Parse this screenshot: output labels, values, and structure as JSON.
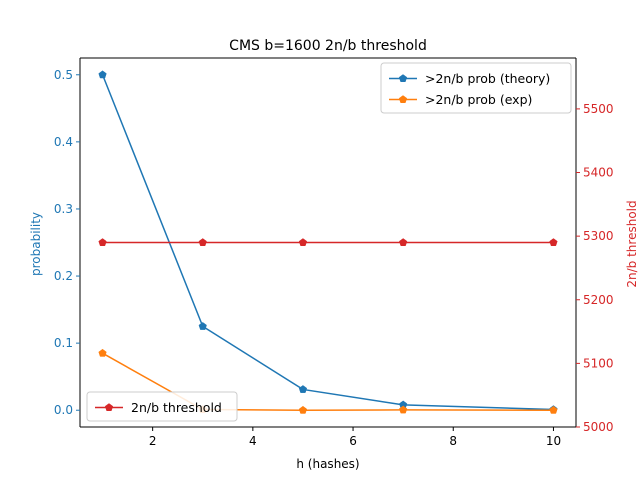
{
  "chart_data": {
    "type": "line",
    "title": "CMS b=1600 2n/b threshold",
    "xlabel": "h (hashes)",
    "ylabel_left": "probability",
    "ylabel_right": "2n/b threshold",
    "x": [
      1,
      3,
      5,
      7,
      10
    ],
    "xlim": [
      0.55,
      10.45
    ],
    "xticks": [
      2,
      4,
      6,
      8,
      10
    ],
    "ylim_left": [
      -0.025,
      0.525
    ],
    "yticks_left": [
      0.0,
      0.1,
      0.2,
      0.3,
      0.4,
      0.5
    ],
    "ylim_right": [
      5000,
      5580
    ],
    "yticks_right": [
      5000,
      5100,
      5200,
      5300,
      5400,
      5500
    ],
    "grid": false,
    "series": [
      {
        "name": ">2n/b prob (theory)",
        "axis": "left",
        "color": "#1f77b4",
        "marker": "pentagon",
        "values": [
          0.5,
          0.125,
          0.031,
          0.008,
          0.001
        ]
      },
      {
        "name": ">2n/b prob (exp)",
        "axis": "left",
        "color": "#ff7f0e",
        "marker": "pentagon",
        "values": [
          0.085,
          0.001,
          0.0,
          0.0005,
          0.0
        ]
      },
      {
        "name": "2n/b threshold",
        "axis": "right",
        "color": "#d62728",
        "marker": "pentagon",
        "values": [
          5290,
          5290,
          5290,
          5290,
          5290
        ]
      }
    ],
    "legends": [
      {
        "position": "upper-right",
        "entries": [
          ">2n/b prob (theory)",
          ">2n/b prob (exp)"
        ]
      },
      {
        "position": "lower-left",
        "entries": [
          "2n/b threshold"
        ]
      }
    ],
    "axis_colors": {
      "left": "#1f77b4",
      "right": "#d62728",
      "bottom": "#000000"
    }
  }
}
